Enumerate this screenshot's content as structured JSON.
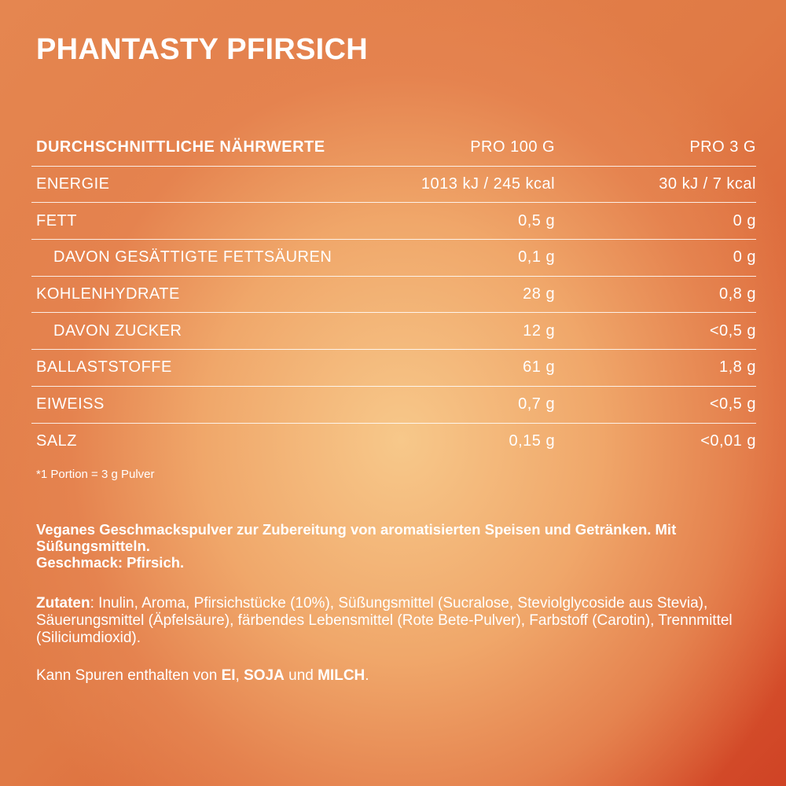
{
  "title": "PHANTASTY PFIRSICH",
  "table": {
    "headers": [
      "DURCHSCHNITTLICHE NÄHRWERTE",
      "PRO 100 G",
      "PRO 3 G"
    ],
    "rows": [
      {
        "label": "ENERGIE",
        "per100": "1013 kJ / 245 kcal",
        "per3": "30 kJ / 7 kcal",
        "sub": false
      },
      {
        "label": "FETT",
        "per100": "0,5 g",
        "per3": "0 g",
        "sub": false
      },
      {
        "label": "DAVON GESÄTTIGTE FETTSÄUREN",
        "per100": "0,1 g",
        "per3": "0 g",
        "sub": true
      },
      {
        "label": "KOHLENHYDRATE",
        "per100": "28 g",
        "per3": "0,8 g",
        "sub": false
      },
      {
        "label": "DAVON ZUCKER",
        "per100": "12 g",
        "per3": "<0,5 g",
        "sub": true
      },
      {
        "label": "BALLASTSTOFFE",
        "per100": "61 g",
        "per3": "1,8 g",
        "sub": false
      },
      {
        "label": "EIWEISS",
        "per100": "0,7 g",
        "per3": "<0,5 g",
        "sub": false
      },
      {
        "label": "SALZ",
        "per100": "0,15 g",
        "per3": "<0,01 g",
        "sub": false
      }
    ]
  },
  "footnote": "*1 Portion = 3 g Pulver",
  "description": {
    "line1": "Veganes Geschmackspulver zur Zubereitung von aromatisierten Speisen und Getränken. Mit Süßungsmitteln.",
    "line2": "Geschmack: Pfirsich."
  },
  "ingredients": {
    "label": "Zutaten",
    "text": ": Inulin, Aroma, Pfirsichstücke (10%), Süßungsmittel (Sucralose, Steviolgly­coside aus Stevia), Säuerungsmittel (Äpfelsäure), färbendes Lebensmittel (Rote Bete-Pulver), Farbstoff (Carotin), Trennmittel (Siliciumdioxid)."
  },
  "allergens": {
    "prefix": "Kann Spuren enthalten von ",
    "a1": "EI",
    "sep1": ", ",
    "a2": "SOJA",
    "sep2": " und ",
    "a3": "MILCH",
    "end": "."
  }
}
